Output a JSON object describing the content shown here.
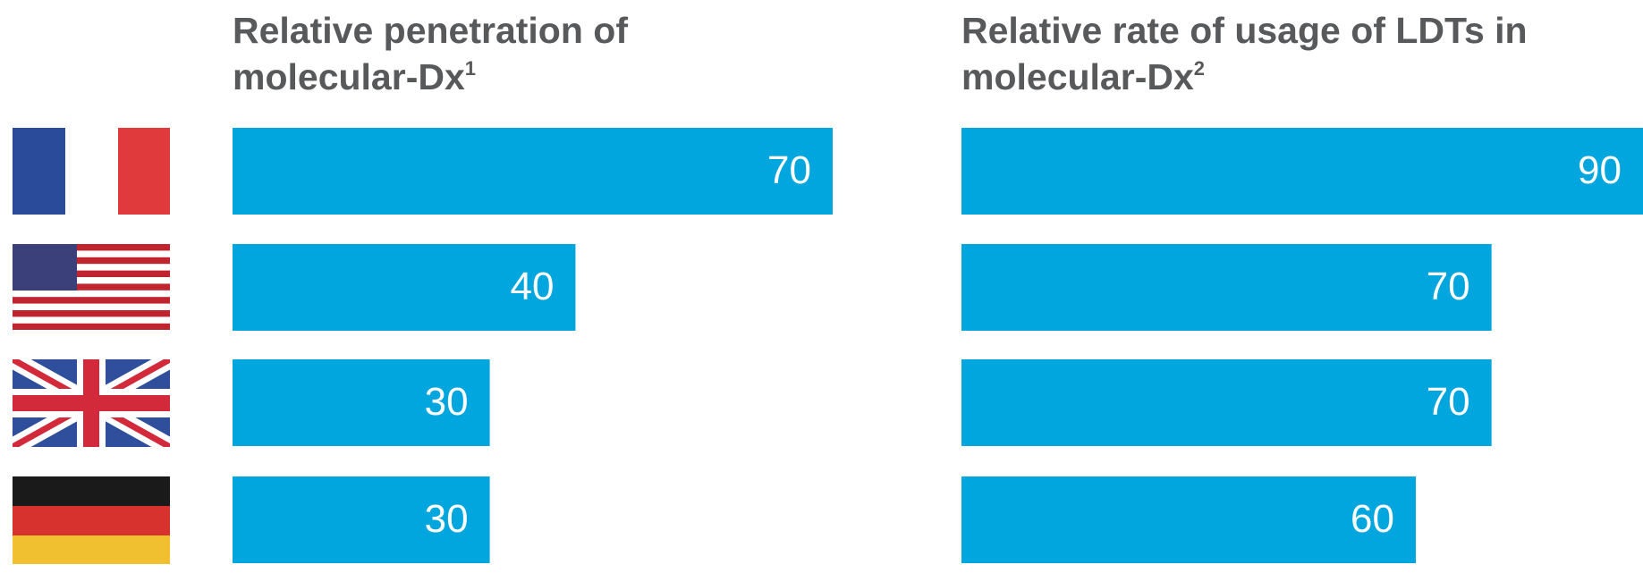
{
  "chart_data": [
    {
      "type": "bar",
      "orientation": "horizontal",
      "title": "Relative penetration of molecular-Dx",
      "title_footnote": "1",
      "values": [
        70,
        40,
        30,
        30
      ],
      "color": "#00a6dd"
    },
    {
      "type": "bar",
      "orientation": "horizontal",
      "title": "Relative rate of usage of LDTs in molecular-Dx",
      "title_footnote": "2",
      "values": [
        90,
        70,
        70,
        60
      ],
      "color": "#00a6dd"
    }
  ]
}
